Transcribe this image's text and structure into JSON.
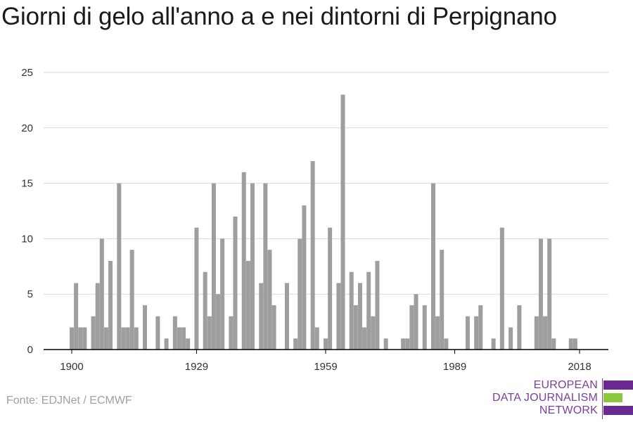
{
  "title": "Giorni di gelo all'anno a e nei dintorni di Perpignano",
  "source": "Fonte: EDJNet / ECMWF",
  "logo": {
    "line1": "EUROPEAN",
    "line2": "DATA JOURNALISM",
    "line3": "NETWORK",
    "colors": {
      "purple": "#6b2a91",
      "green": "#8dc63f"
    }
  },
  "colors": {
    "bar": "#9e9e9e",
    "grid": "#d9d9d9",
    "axis": "#000000"
  },
  "chart_data": {
    "type": "bar",
    "title": "Giorni di gelo all'anno a e nei dintorni di Perpignano",
    "xlabel": "",
    "ylabel": "",
    "ylim": [
      0,
      25
    ],
    "yticks": [
      0,
      5,
      10,
      15,
      20,
      25
    ],
    "xticks": [
      1900,
      1929,
      1959,
      1989,
      2018
    ],
    "xlim": [
      1897,
      2023
    ],
    "grid": true,
    "x": [
      1900,
      1901,
      1902,
      1903,
      1904,
      1905,
      1906,
      1907,
      1908,
      1909,
      1910,
      1911,
      1912,
      1913,
      1914,
      1915,
      1916,
      1917,
      1918,
      1919,
      1920,
      1921,
      1922,
      1923,
      1924,
      1925,
      1926,
      1927,
      1928,
      1929,
      1930,
      1931,
      1932,
      1933,
      1934,
      1935,
      1936,
      1937,
      1938,
      1939,
      1940,
      1941,
      1942,
      1943,
      1944,
      1945,
      1946,
      1947,
      1948,
      1949,
      1950,
      1951,
      1952,
      1953,
      1954,
      1955,
      1956,
      1957,
      1958,
      1959,
      1960,
      1961,
      1962,
      1963,
      1964,
      1965,
      1966,
      1967,
      1968,
      1969,
      1970,
      1971,
      1972,
      1973,
      1974,
      1975,
      1976,
      1977,
      1978,
      1979,
      1980,
      1981,
      1982,
      1983,
      1984,
      1985,
      1986,
      1987,
      1988,
      1989,
      1990,
      1991,
      1992,
      1993,
      1994,
      1995,
      1996,
      1997,
      1998,
      1999,
      2000,
      2001,
      2002,
      2003,
      2004,
      2005,
      2006,
      2007,
      2008,
      2009,
      2010,
      2011,
      2012,
      2013,
      2014,
      2015,
      2016,
      2017,
      2018
    ],
    "values": [
      2,
      6,
      2,
      2,
      0,
      3,
      6,
      10,
      2,
      8,
      0,
      15,
      2,
      2,
      9,
      2,
      0,
      4,
      0,
      0,
      3,
      0,
      1,
      0,
      3,
      2,
      2,
      1,
      0,
      11,
      0,
      7,
      3,
      15,
      5,
      10,
      0,
      3,
      12,
      0,
      16,
      8,
      15,
      0,
      6,
      15,
      9,
      4,
      0,
      0,
      6,
      0,
      1,
      10,
      13,
      0,
      17,
      2,
      0,
      1,
      11,
      0,
      6,
      23,
      0,
      7,
      4,
      6,
      2,
      7,
      3,
      8,
      0,
      1,
      0,
      0,
      0,
      1,
      1,
      4,
      5,
      0,
      4,
      0,
      15,
      3,
      9,
      1,
      0,
      0,
      0,
      0,
      3,
      0,
      3,
      4,
      0,
      0,
      1,
      0,
      11,
      0,
      2,
      0,
      4,
      0,
      0,
      0,
      3,
      10,
      3,
      10,
      1,
      0,
      0,
      0,
      1,
      1,
      0
    ]
  }
}
